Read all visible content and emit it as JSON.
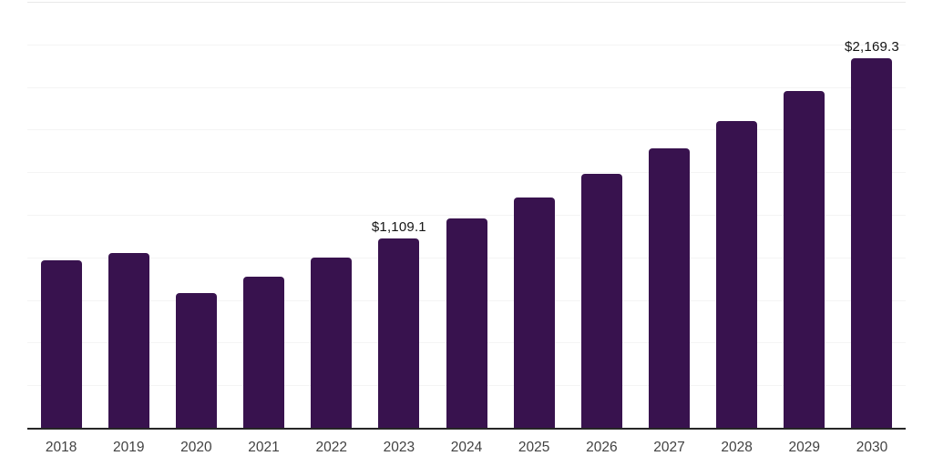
{
  "colors": {
    "background": "#ffffff",
    "bar": "#38124e",
    "axis_line": "#262626",
    "gridline": "#f4f4f4",
    "top_gridline": "#e9e9e9",
    "data_label_text": "#141414",
    "tick_text": "#424242"
  },
  "chart_data": {
    "type": "bar",
    "title": "",
    "xlabel": "",
    "ylabel": "",
    "categories": [
      "2018",
      "2019",
      "2020",
      "2021",
      "2022",
      "2023",
      "2024",
      "2025",
      "2026",
      "2027",
      "2028",
      "2029",
      "2030"
    ],
    "values": [
      983,
      1026,
      791,
      887,
      999,
      1109.1,
      1229,
      1352,
      1490,
      1640,
      1800,
      1977,
      2169.3
    ],
    "data_labels": {
      "2023": "$1,109.1",
      "2030": "$2,169.3"
    },
    "ylim": [
      0,
      2500
    ],
    "gridline_step": 250,
    "grid": true,
    "legend": false,
    "y_axis_tick_labels_visible": false
  }
}
